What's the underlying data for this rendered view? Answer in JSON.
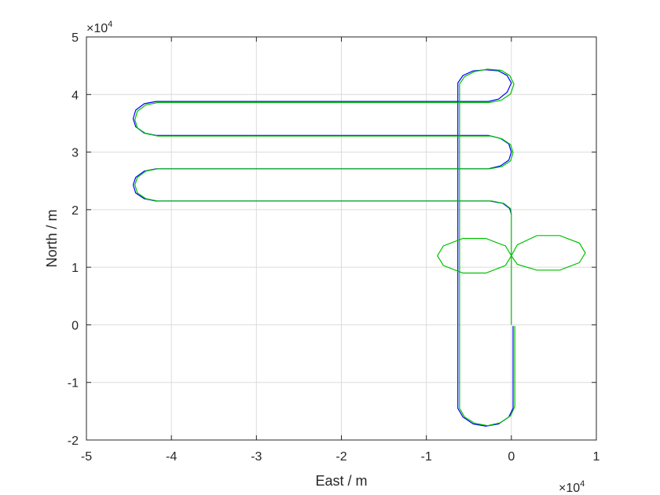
{
  "chart_data": {
    "type": "line",
    "title": "",
    "xlabel": "East / m",
    "ylabel": "North / m",
    "x_exponent_label": "×10",
    "x_exponent_power": "4",
    "y_exponent_label": "×10",
    "y_exponent_power": "4",
    "xlim": [
      -5,
      1
    ],
    "ylim": [
      -2,
      5
    ],
    "xticks": [
      -5,
      -4,
      -3,
      -2,
      -1,
      0,
      1
    ],
    "yticks": [
      -2,
      -1,
      0,
      1,
      2,
      3,
      4,
      5
    ],
    "xtick_labels": [
      "-5",
      "-4",
      "-3",
      "-2",
      "-1",
      "0",
      "1"
    ],
    "ytick_labels": [
      "-2",
      "-1",
      "0",
      "1",
      "2",
      "3",
      "4",
      "5"
    ],
    "grid": true,
    "legend": "none",
    "units_scale": 10000,
    "series": [
      {
        "color": "#0000ff",
        "points": [
          [
            0.02,
            -0.02
          ],
          [
            0.02,
            -1.45
          ],
          [
            -0.03,
            -1.6
          ],
          [
            -0.15,
            -1.72
          ],
          [
            -0.3,
            -1.76
          ],
          [
            -0.45,
            -1.72
          ],
          [
            -0.57,
            -1.6
          ],
          [
            -0.63,
            -1.45
          ],
          [
            -0.63,
            4.2
          ],
          [
            -0.57,
            4.33
          ],
          [
            -0.45,
            4.41
          ],
          [
            -0.3,
            4.43
          ],
          [
            -0.15,
            4.41
          ],
          [
            -0.05,
            4.33
          ],
          [
            0.0,
            4.2
          ],
          [
            -0.05,
            4.04
          ],
          [
            -0.15,
            3.92
          ],
          [
            -0.27,
            3.88
          ],
          [
            -4.18,
            3.88
          ],
          [
            -4.32,
            3.84
          ],
          [
            -4.42,
            3.73
          ],
          [
            -4.45,
            3.58
          ],
          [
            -4.42,
            3.44
          ],
          [
            -4.32,
            3.33
          ],
          [
            -4.18,
            3.29
          ],
          [
            -0.27,
            3.29
          ],
          [
            -0.13,
            3.24
          ],
          [
            -0.03,
            3.14
          ],
          [
            0.0,
            3.0
          ],
          [
            -0.03,
            2.86
          ],
          [
            -0.13,
            2.76
          ],
          [
            -0.27,
            2.71
          ],
          [
            -4.18,
            2.71
          ],
          [
            -4.32,
            2.67
          ],
          [
            -4.42,
            2.56
          ],
          [
            -4.45,
            2.43
          ],
          [
            -4.42,
            2.29
          ],
          [
            -4.32,
            2.19
          ],
          [
            -4.18,
            2.15
          ],
          [
            -0.25,
            2.15
          ],
          [
            -0.1,
            2.11
          ],
          [
            -0.02,
            2.02
          ],
          [
            0.0,
            1.92
          ]
        ]
      },
      {
        "color": "#00c000",
        "points": [
          [
            0.04,
            -0.02
          ],
          [
            0.04,
            -1.42
          ],
          [
            -0.01,
            -1.58
          ],
          [
            -0.13,
            -1.7
          ],
          [
            -0.28,
            -1.75
          ],
          [
            -0.43,
            -1.71
          ],
          [
            -0.55,
            -1.6
          ],
          [
            -0.61,
            -1.45
          ],
          [
            -0.61,
            4.18
          ],
          [
            -0.55,
            4.31
          ],
          [
            -0.43,
            4.4
          ],
          [
            -0.28,
            4.44
          ],
          [
            -0.12,
            4.42
          ],
          [
            -0.02,
            4.33
          ],
          [
            0.03,
            4.18
          ],
          [
            -0.01,
            4.01
          ],
          [
            -0.12,
            3.9
          ],
          [
            -0.26,
            3.86
          ],
          [
            -4.16,
            3.86
          ],
          [
            -4.3,
            3.82
          ],
          [
            -4.4,
            3.71
          ],
          [
            -4.43,
            3.56
          ],
          [
            -4.4,
            3.42
          ],
          [
            -4.3,
            3.32
          ],
          [
            -4.16,
            3.28
          ],
          [
            -0.25,
            3.28
          ],
          [
            -0.11,
            3.23
          ],
          [
            -0.01,
            3.13
          ],
          [
            0.02,
            2.99
          ],
          [
            -0.01,
            2.85
          ],
          [
            -0.11,
            2.75
          ],
          [
            -0.25,
            2.71
          ],
          [
            -4.16,
            2.71
          ],
          [
            -4.3,
            2.67
          ],
          [
            -4.4,
            2.56
          ],
          [
            -4.43,
            2.43
          ],
          [
            -4.4,
            2.29
          ],
          [
            -4.3,
            2.19
          ],
          [
            -4.16,
            2.15
          ],
          [
            -0.23,
            2.15
          ],
          [
            -0.09,
            2.11
          ],
          [
            -0.01,
            2.02
          ],
          [
            0.0,
            1.92
          ],
          [
            0.0,
            1.2
          ],
          [
            0.07,
            1.39
          ],
          [
            0.3,
            1.55
          ],
          [
            0.57,
            1.55
          ],
          [
            0.8,
            1.42
          ],
          [
            0.87,
            1.25
          ],
          [
            0.8,
            1.08
          ],
          [
            0.57,
            0.95
          ],
          [
            0.3,
            0.95
          ],
          [
            0.07,
            1.05
          ],
          [
            0.0,
            1.2
          ],
          [
            -0.07,
            1.37
          ],
          [
            -0.3,
            1.5
          ],
          [
            -0.57,
            1.5
          ],
          [
            -0.8,
            1.37
          ],
          [
            -0.87,
            1.2
          ],
          [
            -0.8,
            1.03
          ],
          [
            -0.57,
            0.9
          ],
          [
            -0.3,
            0.9
          ],
          [
            -0.07,
            1.03
          ],
          [
            0.0,
            1.2
          ],
          [
            0.0,
            0.0
          ]
        ]
      }
    ]
  }
}
